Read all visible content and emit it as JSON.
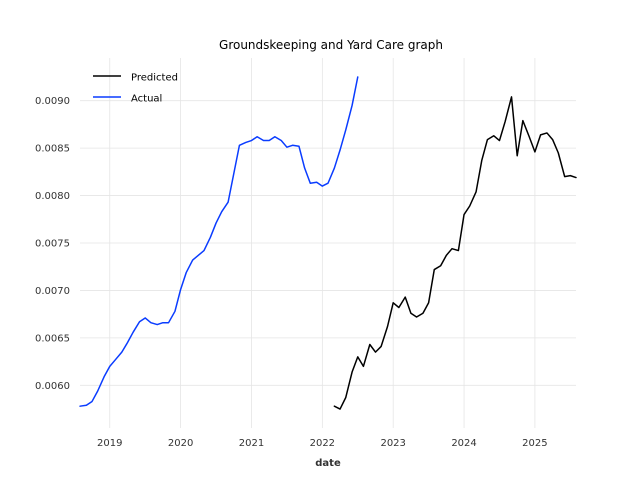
{
  "chart_data": {
    "type": "line",
    "title": "Groundskeeping and Yard Care graph",
    "xlabel": "date",
    "ylabel": "",
    "xlim": [
      2018.58,
      2025.58
    ],
    "ylim": [
      0.00555,
      0.00945
    ],
    "x_ticks": [
      {
        "value": 2019,
        "label": "2019"
      },
      {
        "value": 2020,
        "label": "2020"
      },
      {
        "value": 2021,
        "label": "2021"
      },
      {
        "value": 2022,
        "label": "2022"
      },
      {
        "value": 2023,
        "label": "2023"
      },
      {
        "value": 2024,
        "label": "2024"
      },
      {
        "value": 2025,
        "label": "2025"
      }
    ],
    "y_ticks": [
      {
        "value": 0.006,
        "label": "0.0060"
      },
      {
        "value": 0.0065,
        "label": "0.0065"
      },
      {
        "value": 0.007,
        "label": "0.0070"
      },
      {
        "value": 0.0075,
        "label": "0.0075"
      },
      {
        "value": 0.008,
        "label": "0.0080"
      },
      {
        "value": 0.0085,
        "label": "0.0085"
      },
      {
        "value": 0.009,
        "label": "0.0090"
      }
    ],
    "grid": true,
    "legend_position": "top-left",
    "series": [
      {
        "name": "Predicted",
        "color": "#000000",
        "points": [
          [
            2022.17,
            0.00578
          ],
          [
            2022.25,
            0.00575
          ],
          [
            2022.33,
            0.00587
          ],
          [
            2022.42,
            0.00614
          ],
          [
            2022.5,
            0.0063
          ],
          [
            2022.58,
            0.0062
          ],
          [
            2022.67,
            0.00643
          ],
          [
            2022.75,
            0.00635
          ],
          [
            2022.83,
            0.00641
          ],
          [
            2022.92,
            0.00662
          ],
          [
            2023.0,
            0.00687
          ],
          [
            2023.08,
            0.00682
          ],
          [
            2023.17,
            0.00693
          ],
          [
            2023.25,
            0.00676
          ],
          [
            2023.33,
            0.00672
          ],
          [
            2023.42,
            0.00676
          ],
          [
            2023.5,
            0.00687
          ],
          [
            2023.58,
            0.00722
          ],
          [
            2023.67,
            0.00726
          ],
          [
            2023.75,
            0.00737
          ],
          [
            2023.83,
            0.00744
          ],
          [
            2023.92,
            0.00742
          ],
          [
            2024.0,
            0.0078
          ],
          [
            2024.08,
            0.00789
          ],
          [
            2024.17,
            0.00804
          ],
          [
            2024.25,
            0.00837
          ],
          [
            2024.33,
            0.00859
          ],
          [
            2024.42,
            0.00863
          ],
          [
            2024.5,
            0.00858
          ],
          [
            2024.58,
            0.00878
          ],
          [
            2024.67,
            0.00904
          ],
          [
            2024.75,
            0.00842
          ],
          [
            2024.83,
            0.00879
          ],
          [
            2024.92,
            0.00862
          ],
          [
            2025.0,
            0.00846
          ],
          [
            2025.08,
            0.00864
          ],
          [
            2025.17,
            0.00866
          ],
          [
            2025.25,
            0.00859
          ],
          [
            2025.33,
            0.00845
          ],
          [
            2025.42,
            0.0082
          ],
          [
            2025.5,
            0.00821
          ],
          [
            2025.58,
            0.00819
          ]
        ]
      },
      {
        "name": "Actual",
        "color": "#0a3cff",
        "points": [
          [
            2018.58,
            0.00578
          ],
          [
            2018.67,
            0.00579
          ],
          [
            2018.75,
            0.00583
          ],
          [
            2018.83,
            0.00594
          ],
          [
            2018.92,
            0.00609
          ],
          [
            2019.0,
            0.0062
          ],
          [
            2019.08,
            0.00627
          ],
          [
            2019.17,
            0.00635
          ],
          [
            2019.25,
            0.00645
          ],
          [
            2019.33,
            0.00656
          ],
          [
            2019.42,
            0.00667
          ],
          [
            2019.5,
            0.00671
          ],
          [
            2019.58,
            0.00666
          ],
          [
            2019.67,
            0.00664
          ],
          [
            2019.75,
            0.00666
          ],
          [
            2019.83,
            0.00666
          ],
          [
            2019.92,
            0.00678
          ],
          [
            2020.0,
            0.00701
          ],
          [
            2020.08,
            0.00719
          ],
          [
            2020.17,
            0.00732
          ],
          [
            2020.25,
            0.00737
          ],
          [
            2020.33,
            0.00742
          ],
          [
            2020.42,
            0.00756
          ],
          [
            2020.5,
            0.00771
          ],
          [
            2020.58,
            0.00783
          ],
          [
            2020.67,
            0.00793
          ],
          [
            2020.75,
            0.00823
          ],
          [
            2020.83,
            0.00853
          ],
          [
            2020.92,
            0.00856
          ],
          [
            2021.0,
            0.00858
          ],
          [
            2021.08,
            0.00862
          ],
          [
            2021.17,
            0.00858
          ],
          [
            2021.25,
            0.00858
          ],
          [
            2021.33,
            0.00862
          ],
          [
            2021.42,
            0.00858
          ],
          [
            2021.5,
            0.00851
          ],
          [
            2021.58,
            0.00853
          ],
          [
            2021.67,
            0.00852
          ],
          [
            2021.75,
            0.00829
          ],
          [
            2021.83,
            0.00813
          ],
          [
            2021.92,
            0.00814
          ],
          [
            2022.0,
            0.0081
          ],
          [
            2022.08,
            0.00813
          ],
          [
            2022.17,
            0.00829
          ],
          [
            2022.25,
            0.00848
          ],
          [
            2022.33,
            0.00869
          ],
          [
            2022.42,
            0.00895
          ],
          [
            2022.5,
            0.00925
          ]
        ]
      }
    ]
  }
}
